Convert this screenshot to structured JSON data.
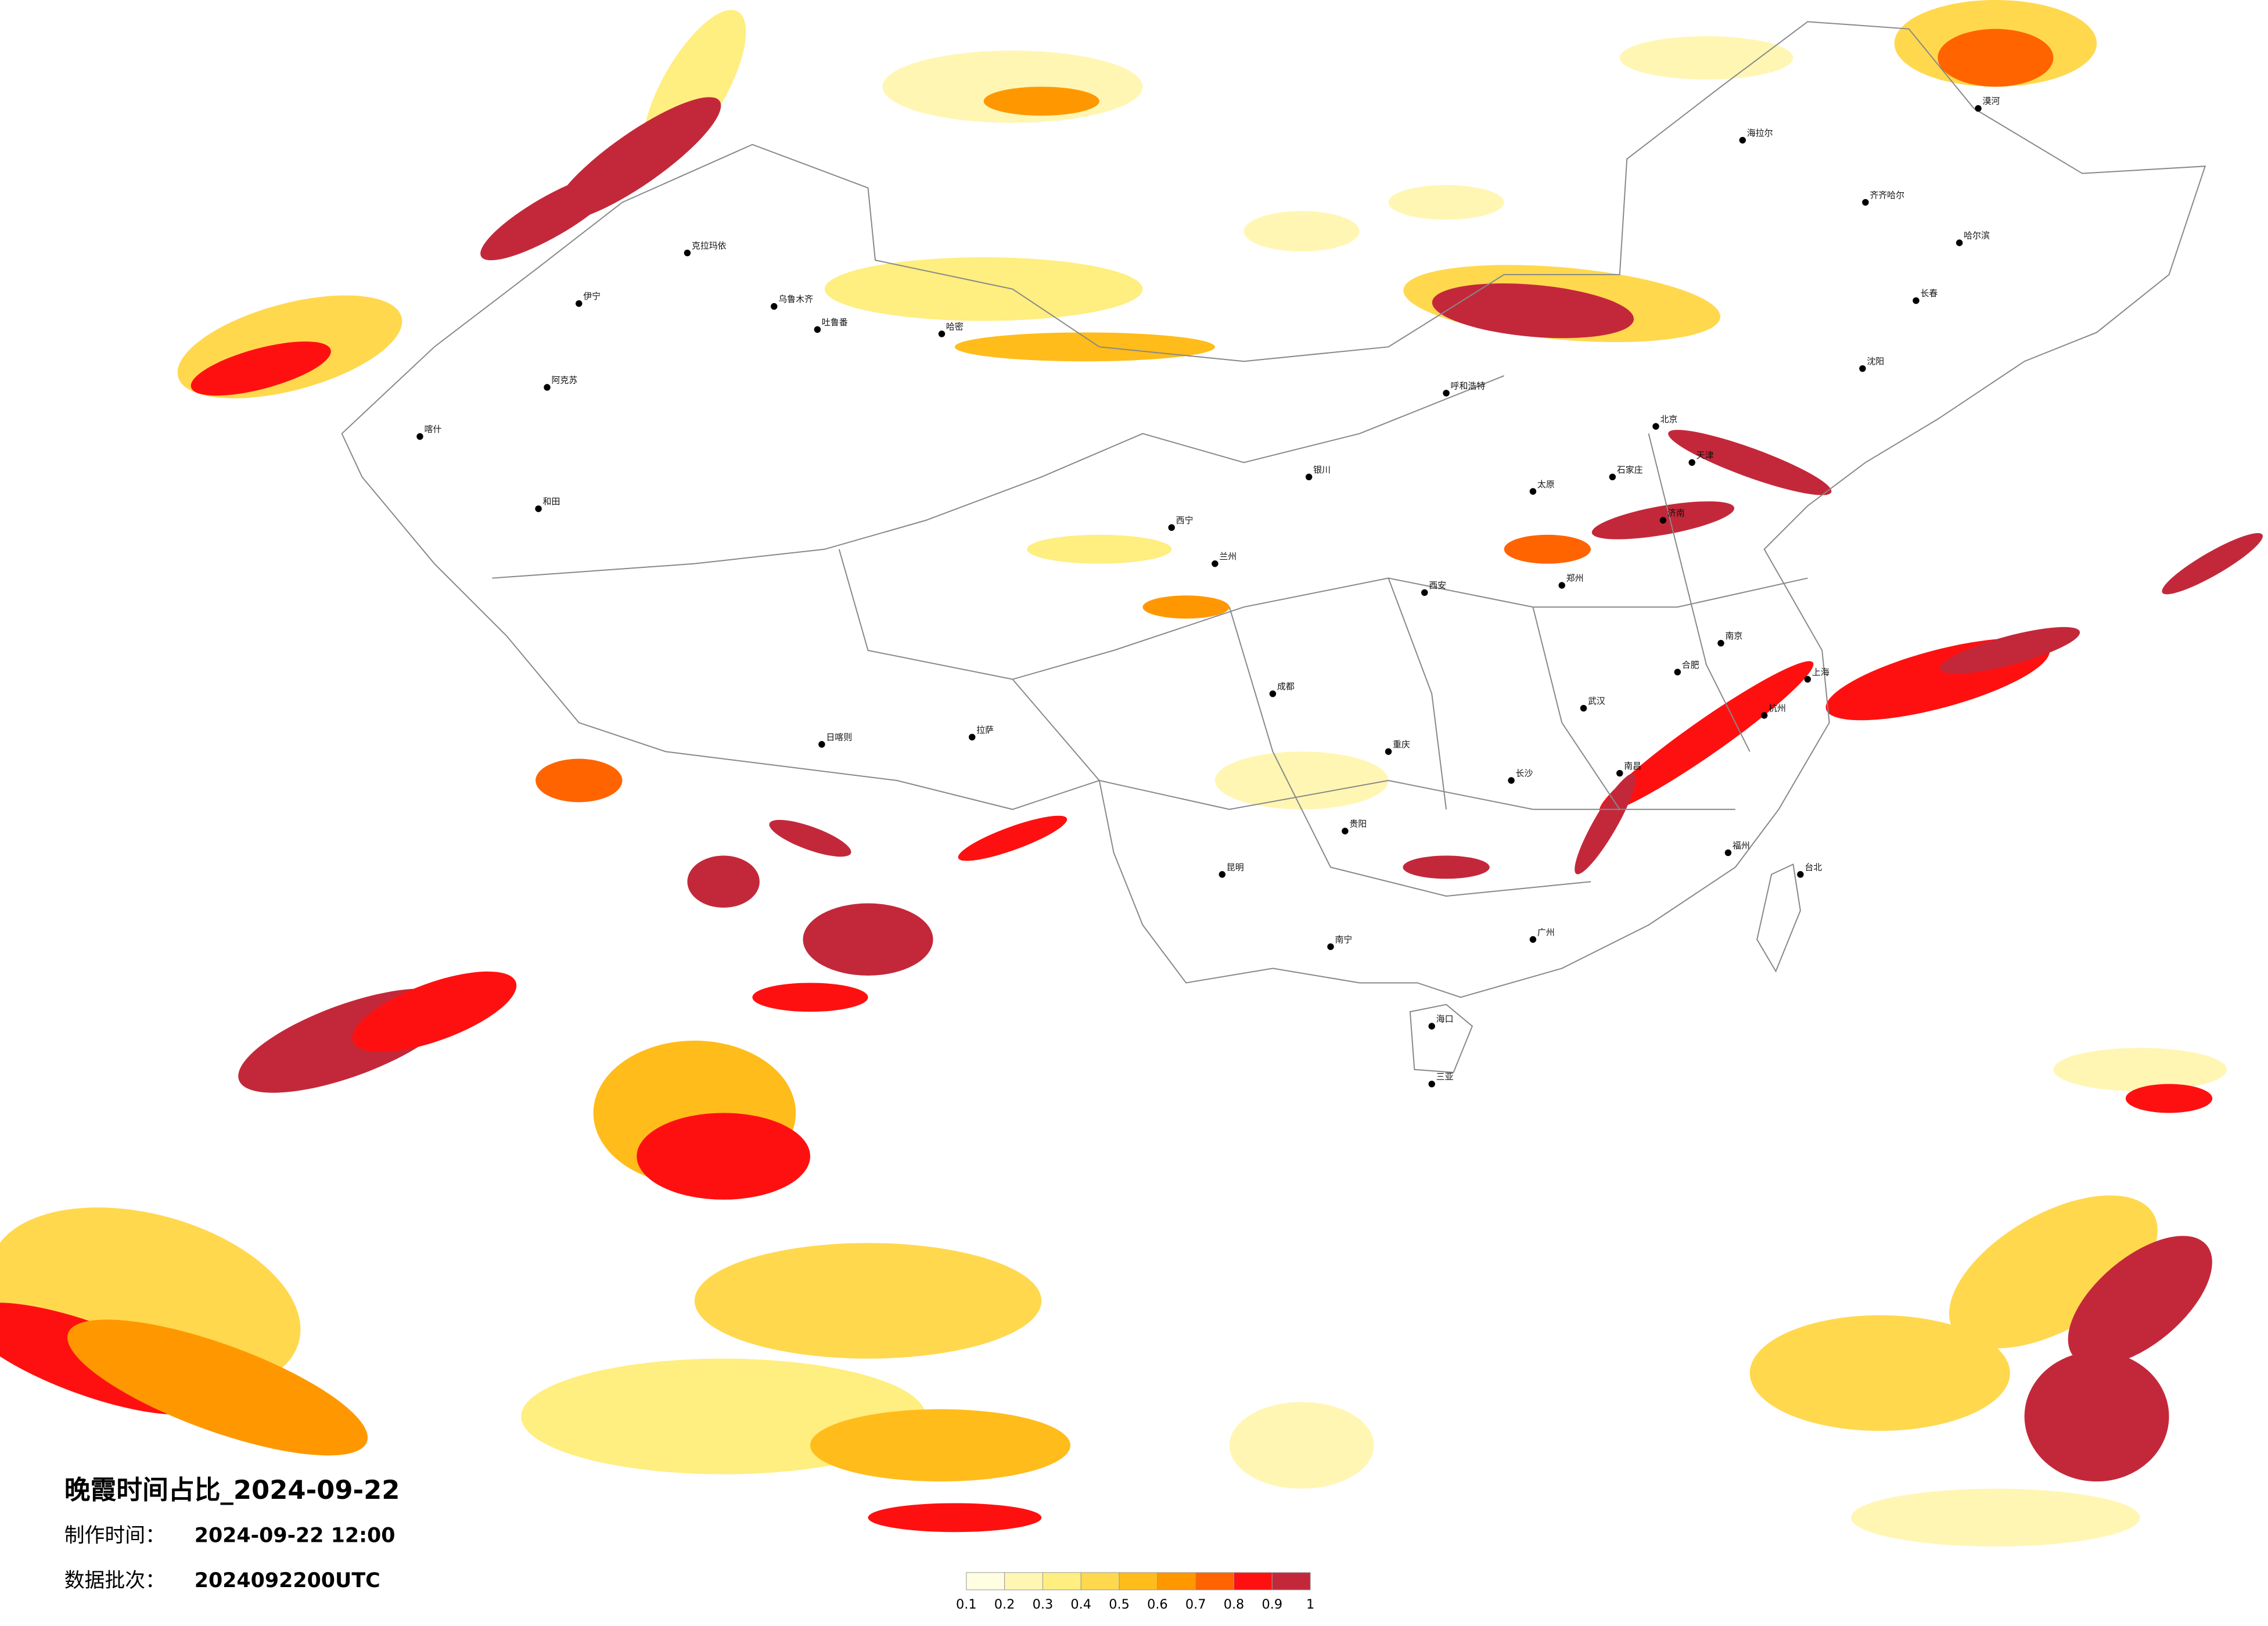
{
  "header": {
    "title": "晚霞时间占比_2024-09-22",
    "made_label": "制作时间：",
    "made_time": "2024-09-22 12:00",
    "batch_label": "数据批次：",
    "batch": "2024092200UTC"
  },
  "legend": {
    "colors": [
      "#fffde2",
      "#fff6b4",
      "#ffee80",
      "#ffd84e",
      "#ffbc1a",
      "#ff9800",
      "#ff6400",
      "#ff1010",
      "#c3283a"
    ],
    "ticks": [
      0.1,
      0.2,
      0.3,
      0.4,
      0.5,
      0.6,
      0.7,
      0.8,
      0.9,
      1
    ]
  },
  "cities": [
    "漠河",
    "海拉尔",
    "齐齐哈尔",
    "哈尔滨",
    "长春",
    "沈阳",
    "克拉玛依",
    "乌鲁木齐",
    "吐鲁番",
    "伊宁",
    "阿克苏",
    "和田",
    "喀什",
    "哈密",
    "呼和浩特",
    "北京",
    "天津",
    "石家庄",
    "太原",
    "济南",
    "郑州",
    "西安",
    "兰州",
    "西宁",
    "银川",
    "拉萨",
    "日喀则",
    "成都",
    "重庆",
    "贵阳",
    "昆明",
    "南宁",
    "广州",
    "长沙",
    "武汉",
    "南昌",
    "合肥",
    "南京",
    "上海",
    "杭州",
    "福州",
    "台北",
    "海口",
    "三亚"
  ]
}
